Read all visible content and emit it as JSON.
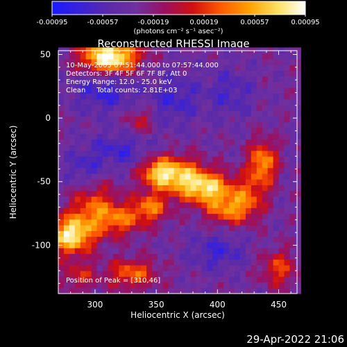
{
  "chart_data": {
    "type": "heatmap",
    "title": "Reconstructed RHESSI Image",
    "xlabel": "Heliocentric X (arcsec)",
    "ylabel": "Heliocentric Y (arcsec)",
    "xlim": [
      270,
      465
    ],
    "ylim": [
      -138,
      53
    ],
    "xticks": [
      300,
      350,
      400,
      450
    ],
    "yticks": [
      50,
      0,
      -50,
      -100
    ],
    "colorbar": {
      "min": -0.00095,
      "max": 0.00095,
      "ticks": [
        "-0.00095",
        "-0.00057",
        "-0.00019",
        "0.00019",
        "0.00057",
        "0.00095"
      ],
      "label": "(photons cm⁻² s⁻¹ asec⁻²)",
      "stops": [
        "#1a1aff",
        "#3a22d8",
        "#5a2aa8",
        "#7030a0",
        "#9a1060",
        "#d01010",
        "#ff5a00",
        "#ffa000",
        "#ffe060",
        "#ffffff"
      ]
    },
    "annotations": [
      "10-May-2005 07:51:44.000 to 07:57:44.000",
      "Detectors: 3F 4F 5F 6F 7F 8F, Att 0",
      "Energy Range: 12.0 - 25.0 keV",
      "Clean     Total counts: 2.81E+03"
    ],
    "peak": {
      "label": "Position of Peak = [310,46]",
      "x": 310,
      "y": 46
    },
    "sources": [
      {
        "x": 312,
        "y": 48,
        "amp": 1.15,
        "sx": 16,
        "sy": 9
      },
      {
        "x": 280,
        "y": -92,
        "amp": 0.95,
        "sx": 12,
        "sy": 10
      },
      {
        "x": 300,
        "y": -72,
        "amp": 0.55,
        "sx": 14,
        "sy": 14
      },
      {
        "x": 322,
        "y": -80,
        "amp": 0.45,
        "sx": 12,
        "sy": 8
      },
      {
        "x": 345,
        "y": -70,
        "amp": 0.6,
        "sx": 10,
        "sy": 8
      },
      {
        "x": 368,
        "y": -45,
        "amp": 0.75,
        "sx": 14,
        "sy": 10
      },
      {
        "x": 392,
        "y": -55,
        "amp": 0.85,
        "sx": 14,
        "sy": 9
      },
      {
        "x": 408,
        "y": -72,
        "amp": 0.55,
        "sx": 12,
        "sy": 8
      },
      {
        "x": 350,
        "y": -42,
        "amp": 0.6,
        "sx": 10,
        "sy": 8
      },
      {
        "x": 437,
        "y": -35,
        "amp": 0.7,
        "sx": 8,
        "sy": 12
      },
      {
        "x": 425,
        "y": -62,
        "amp": 0.45,
        "sx": 10,
        "sy": 12
      },
      {
        "x": 330,
        "y": -122,
        "amp": 0.55,
        "sx": 14,
        "sy": 8
      },
      {
        "x": 450,
        "y": -118,
        "amp": 0.45,
        "sx": 10,
        "sy": 10
      },
      {
        "x": 287,
        "y": -124,
        "amp": 0.35,
        "sx": 10,
        "sy": 8
      },
      {
        "x": 336,
        "y": -2,
        "amp": 0.3,
        "sx": 8,
        "sy": 8
      },
      {
        "x": 308,
        "y": 22,
        "amp": -0.35,
        "sx": 18,
        "sy": 12
      },
      {
        "x": 320,
        "y": -25,
        "amp": -0.3,
        "sx": 18,
        "sy": 10
      },
      {
        "x": 365,
        "y": 15,
        "amp": -0.3,
        "sx": 14,
        "sy": 14
      },
      {
        "x": 410,
        "y": 20,
        "amp": -0.25,
        "sx": 14,
        "sy": 14
      },
      {
        "x": 400,
        "y": -105,
        "amp": -0.3,
        "sx": 16,
        "sy": 10
      },
      {
        "x": 290,
        "y": -40,
        "amp": -0.25,
        "sx": 10,
        "sy": 10
      }
    ]
  },
  "footer": {
    "date": "29-Apr-2022 21:06"
  }
}
